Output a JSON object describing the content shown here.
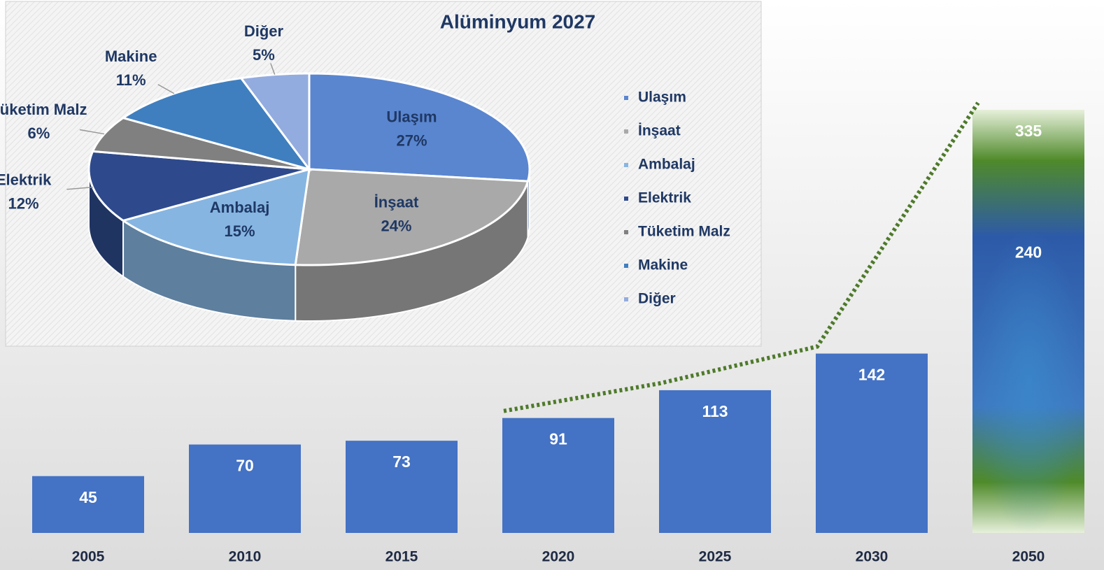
{
  "chart_data": [
    {
      "type": "bar",
      "categories": [
        "2005",
        "2010",
        "2015",
        "2020",
        "2025",
        "2030",
        "2050"
      ],
      "values": [
        45,
        70,
        73,
        91,
        113,
        142,
        335
      ],
      "inner_values": [
        null,
        null,
        null,
        null,
        null,
        null,
        240
      ],
      "color": "#4472c4"
    },
    {
      "type": "pie",
      "title": "Alüminyum 2027",
      "categories": [
        "Ulaşım",
        "İnşaat",
        "Ambalaj",
        "Elektrik",
        "Tüketim Malz",
        "Makine",
        "Diğer"
      ],
      "values": [
        27,
        24,
        15,
        12,
        6,
        11,
        5
      ],
      "value_labels": [
        "27%",
        "24%",
        "15%",
        "12%",
        "6%",
        "11%",
        "5%"
      ],
      "colors": [
        "#5a86d0",
        "#a9a9a9",
        "#86b5e2",
        "#2e4a8c",
        "#808080",
        "#3f7fbf",
        "#93acdf"
      ],
      "legend": "right"
    }
  ]
}
